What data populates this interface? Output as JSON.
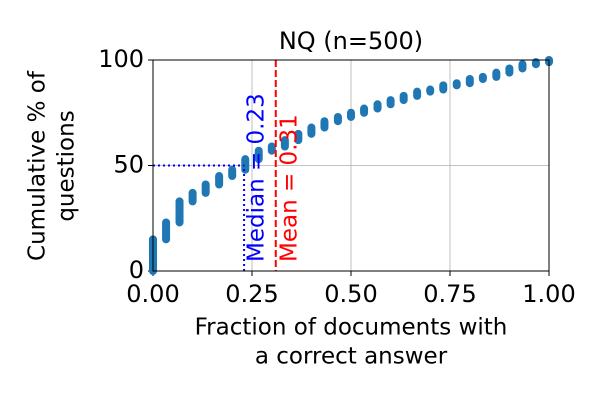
{
  "chart_data": {
    "type": "step-scatter",
    "title": "NQ (n=500)",
    "xlabel": [
      "Fraction of documents with",
      "a correct answer"
    ],
    "ylabel": [
      "Cumulative % of",
      "questions"
    ],
    "color": "#1f77b4",
    "x": [
      0,
      0.033,
      0.067,
      0.1,
      0.133,
      0.167,
      0.2,
      0.233,
      0.267,
      0.3,
      0.333,
      0.367,
      0.4,
      0.433,
      0.467,
      0.5,
      0.533,
      0.567,
      0.6,
      0.633,
      0.667,
      0.7,
      0.733,
      0.767,
      0.8,
      0.833,
      0.867,
      0.9,
      0.933,
      0.967,
      1.0
    ],
    "values": [
      15,
      23,
      33,
      37,
      41,
      45,
      48,
      53,
      57,
      59,
      62,
      65,
      68,
      71,
      73,
      75,
      77,
      79,
      81,
      83,
      85,
      86,
      88,
      89,
      91,
      92,
      94,
      96,
      98,
      99,
      100
    ],
    "xlim": [
      0,
      1
    ],
    "ylim": [
      0,
      100
    ],
    "xticks": [
      {
        "value": 0,
        "label": "0.00"
      },
      {
        "value": 0.25,
        "label": "0.25"
      },
      {
        "value": 0.5,
        "label": "0.50"
      },
      {
        "value": 0.75,
        "label": "0.75"
      },
      {
        "value": 1,
        "label": "1.00"
      }
    ],
    "yticks": [
      0,
      50,
      100
    ],
    "grid": true,
    "median": {
      "x": 0.23,
      "y": 50,
      "label": "Median = 0.23",
      "color": "#0000ff"
    },
    "mean": {
      "x": 0.31,
      "label": "Mean = 0.31",
      "color": "#ff0000"
    }
  }
}
